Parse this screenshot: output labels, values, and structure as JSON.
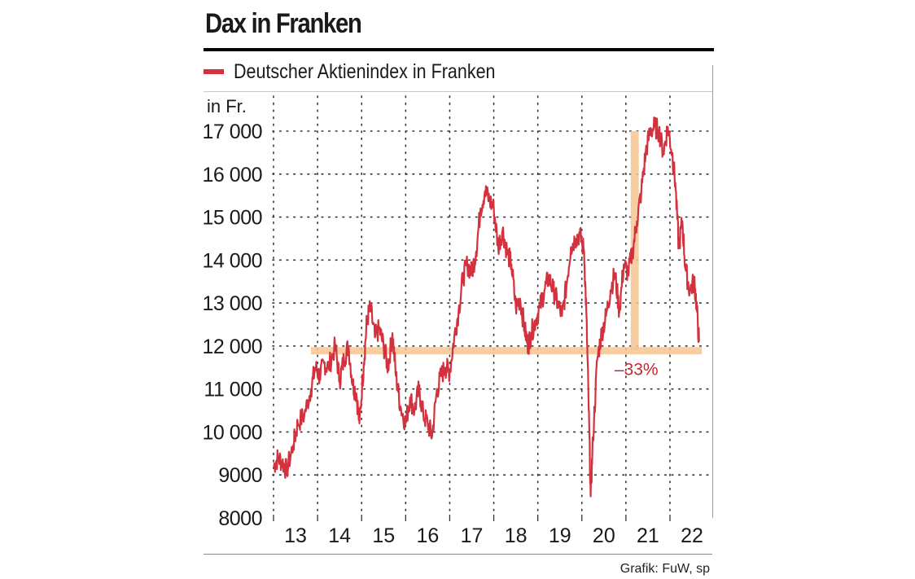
{
  "chart_data": {
    "type": "line",
    "title": "Dax in Franken",
    "ylabel": "in Fr.",
    "xlabel": "",
    "ylim": [
      8000,
      17500
    ],
    "xlim": [
      2012.95,
      2022.72
    ],
    "y_ticks": [
      8000,
      9000,
      10000,
      11000,
      12000,
      13000,
      14000,
      15000,
      16000,
      17000
    ],
    "y_tick_labels": [
      "8000",
      "9000",
      "10 000",
      "11 000",
      "12 000",
      "13 000",
      "14 000",
      "15 000",
      "16 000",
      "17 000"
    ],
    "x_ticks": [
      2013,
      2014,
      2015,
      2016,
      2017,
      2018,
      2019,
      2020,
      2021,
      2022
    ],
    "x_tick_labels": [
      "13",
      "14",
      "15",
      "16",
      "17",
      "18",
      "19",
      "20",
      "21",
      "22"
    ],
    "grid": true,
    "legend": "top-left",
    "series": [
      {
        "name": "Deutscher Aktienindex in Franken",
        "color": "#d2313d",
        "x": [
          2013.0,
          2013.1,
          2013.2,
          2013.3,
          2013.45,
          2013.55,
          2013.7,
          2013.85,
          2013.95,
          2014.05,
          2014.15,
          2014.25,
          2014.4,
          2014.5,
          2014.6,
          2014.7,
          2014.8,
          2014.88,
          2014.95,
          2015.05,
          2015.12,
          2015.2,
          2015.3,
          2015.4,
          2015.5,
          2015.6,
          2015.7,
          2015.78,
          2015.88,
          2016.0,
          2016.1,
          2016.2,
          2016.3,
          2016.4,
          2016.5,
          2016.6,
          2016.7,
          2016.8,
          2016.9,
          2017.0,
          2017.1,
          2017.2,
          2017.3,
          2017.4,
          2017.5,
          2017.6,
          2017.7,
          2017.8,
          2017.9,
          2018.0,
          2018.1,
          2018.2,
          2018.3,
          2018.4,
          2018.5,
          2018.6,
          2018.7,
          2018.78,
          2018.85,
          2018.95,
          2019.05,
          2019.15,
          2019.25,
          2019.35,
          2019.45,
          2019.55,
          2019.65,
          2019.75,
          2019.85,
          2019.95,
          2020.05,
          2020.1,
          2020.15,
          2020.2,
          2020.25,
          2020.35,
          2020.45,
          2020.55,
          2020.65,
          2020.75,
          2020.85,
          2020.95,
          2021.05,
          2021.15,
          2021.25,
          2021.35,
          2021.45,
          2021.55,
          2021.65,
          2021.75,
          2021.85,
          2021.95,
          2022.05,
          2022.12,
          2022.2,
          2022.28,
          2022.35,
          2022.45,
          2022.55,
          2022.6,
          2022.66
        ],
        "values": [
          9200,
          9400,
          9300,
          9100,
          9700,
          10200,
          10400,
          11000,
          11500,
          11300,
          11600,
          11500,
          12000,
          11200,
          11700,
          12000,
          11100,
          10900,
          10200,
          11600,
          12600,
          12900,
          12200,
          12400,
          12000,
          11500,
          12300,
          11300,
          10600,
          10200,
          10800,
          10500,
          11000,
          10400,
          10200,
          9900,
          10900,
          11300,
          11500,
          11400,
          12200,
          12800,
          13600,
          13900,
          13700,
          14200,
          15200,
          15600,
          15400,
          15200,
          14300,
          14700,
          14200,
          13900,
          12900,
          13100,
          12400,
          12000,
          12300,
          12600,
          12900,
          13300,
          13600,
          13300,
          13000,
          12700,
          13400,
          14300,
          14500,
          14600,
          14200,
          12800,
          10800,
          8500,
          9800,
          11700,
          12300,
          12700,
          13300,
          13700,
          12800,
          13900,
          13700,
          14200,
          14900,
          15600,
          16500,
          17000,
          17100,
          17000,
          16500,
          17100,
          16500,
          15800,
          14300,
          14900,
          13800,
          13300,
          13500,
          13000,
          12100
        ]
      }
    ],
    "annotations": [
      {
        "type": "horizontal-band",
        "y": 11900,
        "x_from": 2013.85,
        "x_to": 2022.72,
        "color": "#f6c694"
      },
      {
        "type": "vertical-band",
        "x": 2021.2,
        "y_from": 11900,
        "y_to": 17000,
        "color": "#f6c694"
      },
      {
        "type": "label",
        "text": "–33%",
        "x": 2021.2,
        "y": 11400
      }
    ]
  },
  "credit": "Grafik: FuW, sp"
}
